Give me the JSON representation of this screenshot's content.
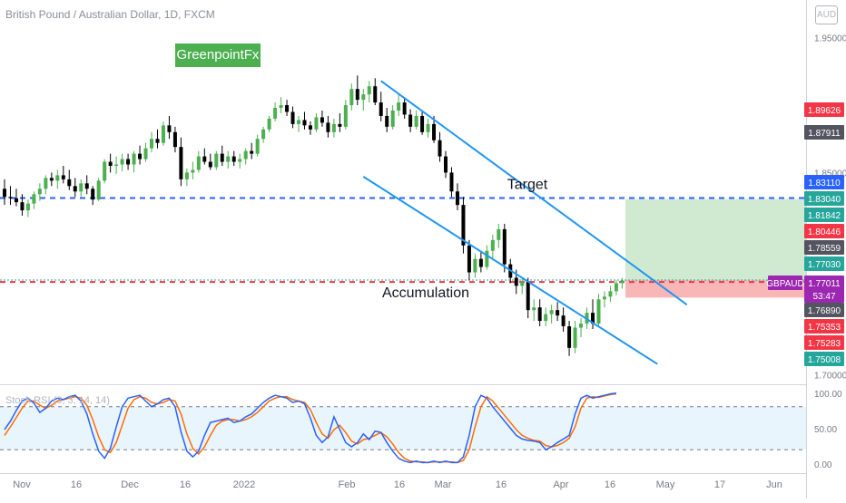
{
  "header": {
    "title": "British Pound / Australian Dollar, 1D, FXCM"
  },
  "branding": {
    "label": "GreenpointFx"
  },
  "currency_badge": "AUD",
  "chart_data": {
    "type": "candlestick",
    "symbol": "GBPAUD",
    "timeframe": "1D",
    "y_axis": {
      "ticks": [
        "1.95000",
        "1.85000",
        "1.70000"
      ],
      "ylim": [
        1.693,
        1.978
      ]
    },
    "x_axis": {
      "ticks": [
        "Nov",
        "16",
        "Dec",
        "16",
        "2022",
        "Feb",
        "16",
        "Mar",
        "16",
        "Apr",
        "16",
        "May",
        "17",
        "Jun"
      ]
    },
    "candles": [
      {
        "o": 1.838,
        "h": 1.845,
        "l": 1.826,
        "c": 1.832
      },
      {
        "o": 1.832,
        "h": 1.84,
        "l": 1.826,
        "c": 1.831
      },
      {
        "o": 1.831,
        "h": 1.838,
        "l": 1.825,
        "c": 1.828
      },
      {
        "o": 1.828,
        "h": 1.834,
        "l": 1.818,
        "c": 1.822
      },
      {
        "o": 1.822,
        "h": 1.83,
        "l": 1.817,
        "c": 1.827
      },
      {
        "o": 1.827,
        "h": 1.836,
        "l": 1.823,
        "c": 1.834
      },
      {
        "o": 1.834,
        "h": 1.842,
        "l": 1.829,
        "c": 1.838
      },
      {
        "o": 1.838,
        "h": 1.848,
        "l": 1.834,
        "c": 1.846
      },
      {
        "o": 1.846,
        "h": 1.85,
        "l": 1.84,
        "c": 1.844
      },
      {
        "o": 1.844,
        "h": 1.852,
        "l": 1.838,
        "c": 1.848
      },
      {
        "o": 1.848,
        "h": 1.855,
        "l": 1.842,
        "c": 1.845
      },
      {
        "o": 1.845,
        "h": 1.852,
        "l": 1.837,
        "c": 1.84
      },
      {
        "o": 1.84,
        "h": 1.846,
        "l": 1.832,
        "c": 1.836
      },
      {
        "o": 1.836,
        "h": 1.845,
        "l": 1.832,
        "c": 1.842
      },
      {
        "o": 1.842,
        "h": 1.848,
        "l": 1.834,
        "c": 1.838
      },
      {
        "o": 1.838,
        "h": 1.84,
        "l": 1.826,
        "c": 1.83
      },
      {
        "o": 1.83,
        "h": 1.846,
        "l": 1.829,
        "c": 1.844
      },
      {
        "o": 1.844,
        "h": 1.86,
        "l": 1.842,
        "c": 1.858
      },
      {
        "o": 1.858,
        "h": 1.864,
        "l": 1.85,
        "c": 1.855
      },
      {
        "o": 1.855,
        "h": 1.862,
        "l": 1.849,
        "c": 1.856
      },
      {
        "o": 1.856,
        "h": 1.864,
        "l": 1.851,
        "c": 1.86
      },
      {
        "o": 1.86,
        "h": 1.864,
        "l": 1.852,
        "c": 1.856
      },
      {
        "o": 1.856,
        "h": 1.866,
        "l": 1.85,
        "c": 1.864
      },
      {
        "o": 1.864,
        "h": 1.87,
        "l": 1.856,
        "c": 1.86
      },
      {
        "o": 1.86,
        "h": 1.872,
        "l": 1.858,
        "c": 1.868
      },
      {
        "o": 1.868,
        "h": 1.88,
        "l": 1.865,
        "c": 1.875
      },
      {
        "o": 1.875,
        "h": 1.882,
        "l": 1.868,
        "c": 1.872
      },
      {
        "o": 1.872,
        "h": 1.888,
        "l": 1.87,
        "c": 1.885
      },
      {
        "o": 1.885,
        "h": 1.892,
        "l": 1.875,
        "c": 1.88
      },
      {
        "o": 1.88,
        "h": 1.884,
        "l": 1.865,
        "c": 1.869
      },
      {
        "o": 1.869,
        "h": 1.876,
        "l": 1.84,
        "c": 1.845
      },
      {
        "o": 1.845,
        "h": 1.853,
        "l": 1.84,
        "c": 1.85
      },
      {
        "o": 1.85,
        "h": 1.858,
        "l": 1.845,
        "c": 1.852
      },
      {
        "o": 1.852,
        "h": 1.866,
        "l": 1.85,
        "c": 1.862
      },
      {
        "o": 1.862,
        "h": 1.868,
        "l": 1.856,
        "c": 1.858
      },
      {
        "o": 1.858,
        "h": 1.864,
        "l": 1.852,
        "c": 1.854
      },
      {
        "o": 1.854,
        "h": 1.866,
        "l": 1.852,
        "c": 1.864
      },
      {
        "o": 1.864,
        "h": 1.87,
        "l": 1.855,
        "c": 1.858
      },
      {
        "o": 1.858,
        "h": 1.866,
        "l": 1.853,
        "c": 1.862
      },
      {
        "o": 1.862,
        "h": 1.866,
        "l": 1.855,
        "c": 1.858
      },
      {
        "o": 1.858,
        "h": 1.864,
        "l": 1.853,
        "c": 1.86
      },
      {
        "o": 1.86,
        "h": 1.868,
        "l": 1.856,
        "c": 1.866
      },
      {
        "o": 1.866,
        "h": 1.872,
        "l": 1.86,
        "c": 1.864
      },
      {
        "o": 1.864,
        "h": 1.878,
        "l": 1.862,
        "c": 1.875
      },
      {
        "o": 1.875,
        "h": 1.884,
        "l": 1.872,
        "c": 1.882
      },
      {
        "o": 1.882,
        "h": 1.892,
        "l": 1.88,
        "c": 1.89
      },
      {
        "o": 1.89,
        "h": 1.902,
        "l": 1.888,
        "c": 1.898
      },
      {
        "o": 1.898,
        "h": 1.906,
        "l": 1.894,
        "c": 1.9
      },
      {
        "o": 1.9,
        "h": 1.904,
        "l": 1.892,
        "c": 1.895
      },
      {
        "o": 1.895,
        "h": 1.899,
        "l": 1.883,
        "c": 1.886
      },
      {
        "o": 1.886,
        "h": 1.892,
        "l": 1.88,
        "c": 1.889
      },
      {
        "o": 1.889,
        "h": 1.895,
        "l": 1.882,
        "c": 1.885
      },
      {
        "o": 1.885,
        "h": 1.888,
        "l": 1.878,
        "c": 1.882
      },
      {
        "o": 1.882,
        "h": 1.894,
        "l": 1.88,
        "c": 1.891
      },
      {
        "o": 1.891,
        "h": 1.896,
        "l": 1.884,
        "c": 1.887
      },
      {
        "o": 1.887,
        "h": 1.892,
        "l": 1.876,
        "c": 1.88
      },
      {
        "o": 1.88,
        "h": 1.89,
        "l": 1.876,
        "c": 1.886
      },
      {
        "o": 1.886,
        "h": 1.894,
        "l": 1.88,
        "c": 1.884
      },
      {
        "o": 1.884,
        "h": 1.904,
        "l": 1.882,
        "c": 1.9
      },
      {
        "o": 1.9,
        "h": 1.916,
        "l": 1.896,
        "c": 1.912
      },
      {
        "o": 1.912,
        "h": 1.922,
        "l": 1.9,
        "c": 1.904
      },
      {
        "o": 1.904,
        "h": 1.912,
        "l": 1.896,
        "c": 1.908
      },
      {
        "o": 1.908,
        "h": 1.918,
        "l": 1.902,
        "c": 1.914
      },
      {
        "o": 1.914,
        "h": 1.92,
        "l": 1.9,
        "c": 1.902
      },
      {
        "o": 1.902,
        "h": 1.91,
        "l": 1.888,
        "c": 1.892
      },
      {
        "o": 1.892,
        "h": 1.898,
        "l": 1.88,
        "c": 1.884
      },
      {
        "o": 1.884,
        "h": 1.9,
        "l": 1.882,
        "c": 1.896
      },
      {
        "o": 1.896,
        "h": 1.908,
        "l": 1.892,
        "c": 1.902
      },
      {
        "o": 1.902,
        "h": 1.906,
        "l": 1.89,
        "c": 1.893
      },
      {
        "o": 1.893,
        "h": 1.897,
        "l": 1.88,
        "c": 1.884
      },
      {
        "o": 1.884,
        "h": 1.896,
        "l": 1.882,
        "c": 1.892
      },
      {
        "o": 1.892,
        "h": 1.896,
        "l": 1.878,
        "c": 1.88
      },
      {
        "o": 1.88,
        "h": 1.89,
        "l": 1.876,
        "c": 1.886
      },
      {
        "o": 1.886,
        "h": 1.892,
        "l": 1.872,
        "c": 1.874
      },
      {
        "o": 1.874,
        "h": 1.88,
        "l": 1.858,
        "c": 1.862
      },
      {
        "o": 1.862,
        "h": 1.866,
        "l": 1.846,
        "c": 1.85
      },
      {
        "o": 1.85,
        "h": 1.854,
        "l": 1.832,
        "c": 1.836
      },
      {
        "o": 1.836,
        "h": 1.842,
        "l": 1.822,
        "c": 1.826
      },
      {
        "o": 1.826,
        "h": 1.832,
        "l": 1.79,
        "c": 1.796
      },
      {
        "o": 1.796,
        "h": 1.8,
        "l": 1.77,
        "c": 1.776
      },
      {
        "o": 1.776,
        "h": 1.79,
        "l": 1.772,
        "c": 1.786
      },
      {
        "o": 1.786,
        "h": 1.792,
        "l": 1.776,
        "c": 1.78
      },
      {
        "o": 1.78,
        "h": 1.796,
        "l": 1.778,
        "c": 1.792
      },
      {
        "o": 1.792,
        "h": 1.804,
        "l": 1.786,
        "c": 1.8
      },
      {
        "o": 1.8,
        "h": 1.812,
        "l": 1.794,
        "c": 1.808
      },
      {
        "o": 1.808,
        "h": 1.812,
        "l": 1.776,
        "c": 1.782
      },
      {
        "o": 1.782,
        "h": 1.786,
        "l": 1.768,
        "c": 1.772
      },
      {
        "o": 1.772,
        "h": 1.778,
        "l": 1.76,
        "c": 1.766
      },
      {
        "o": 1.766,
        "h": 1.772,
        "l": 1.76,
        "c": 1.769
      },
      {
        "o": 1.769,
        "h": 1.772,
        "l": 1.742,
        "c": 1.748
      },
      {
        "o": 1.748,
        "h": 1.756,
        "l": 1.74,
        "c": 1.75
      },
      {
        "o": 1.75,
        "h": 1.756,
        "l": 1.736,
        "c": 1.74
      },
      {
        "o": 1.74,
        "h": 1.75,
        "l": 1.736,
        "c": 1.745
      },
      {
        "o": 1.745,
        "h": 1.752,
        "l": 1.738,
        "c": 1.748
      },
      {
        "o": 1.748,
        "h": 1.754,
        "l": 1.74,
        "c": 1.744
      },
      {
        "o": 1.744,
        "h": 1.75,
        "l": 1.732,
        "c": 1.736
      },
      {
        "o": 1.736,
        "h": 1.74,
        "l": 1.714,
        "c": 1.72
      },
      {
        "o": 1.72,
        "h": 1.74,
        "l": 1.716,
        "c": 1.735
      },
      {
        "o": 1.735,
        "h": 1.742,
        "l": 1.728,
        "c": 1.738
      },
      {
        "o": 1.738,
        "h": 1.75,
        "l": 1.734,
        "c": 1.746
      },
      {
        "o": 1.746,
        "h": 1.756,
        "l": 1.734,
        "c": 1.738
      },
      {
        "o": 1.738,
        "h": 1.76,
        "l": 1.736,
        "c": 1.756
      },
      {
        "o": 1.756,
        "h": 1.762,
        "l": 1.75,
        "c": 1.758
      },
      {
        "o": 1.758,
        "h": 1.766,
        "l": 1.754,
        "c": 1.762
      },
      {
        "o": 1.762,
        "h": 1.77,
        "l": 1.759,
        "c": 1.768
      },
      {
        "o": 1.768,
        "h": 1.772,
        "l": 1.764,
        "c": 1.77
      }
    ],
    "price_labels": [
      {
        "value": "1.89626",
        "color": "#f23645"
      },
      {
        "value": "1.87911",
        "color": "#525560"
      },
      {
        "value": "1.83110",
        "color": "#2962ff"
      },
      {
        "value": "1.83040",
        "color": "#26a69a"
      },
      {
        "value": "1.81842",
        "color": "#26a69a"
      },
      {
        "value": "1.80446",
        "color": "#f23645"
      },
      {
        "value": "1.78559",
        "color": "#525560"
      },
      {
        "value": "1.77030",
        "color": "#26a69a"
      },
      {
        "value": "1.77011",
        "color": "#9c27b0",
        "countdown": "53:47"
      },
      {
        "value": "1.76890",
        "color": "#525560"
      },
      {
        "value": "1.75353",
        "color": "#f23645"
      },
      {
        "value": "1.75283",
        "color": "#f23645"
      },
      {
        "value": "1.75008",
        "color": "#26a69a"
      }
    ],
    "annotations": {
      "target_label": "Target",
      "accumulation_label": "Accumulation",
      "target_level": 1.8311,
      "stop_level": 1.7689,
      "entry_level": 1.7703,
      "position_box": {
        "entry": 1.7703,
        "target": 1.8304,
        "stop": 1.7573
      },
      "channel_upper": {
        "from": [
          64,
          1.918
        ],
        "to": [
          116,
          1.752
        ]
      },
      "channel_lower": {
        "from": [
          61,
          1.847
        ],
        "to": [
          111,
          1.708
        ]
      }
    },
    "stoch_rsi": {
      "label": "Stoch RSI (3, 3, 14, 14)",
      "y_ticks": [
        "100.00",
        "50.00",
        "0.00"
      ],
      "bands": [
        80,
        20
      ],
      "k": [
        48,
        60,
        75,
        88,
        92,
        85,
        72,
        78,
        88,
        92,
        90,
        94,
        96,
        88,
        70,
        42,
        18,
        8,
        22,
        52,
        80,
        92,
        94,
        96,
        88,
        80,
        84,
        90,
        92,
        80,
        45,
        18,
        10,
        18,
        40,
        58,
        60,
        62,
        64,
        58,
        60,
        66,
        70,
        78,
        86,
        92,
        96,
        94,
        92,
        86,
        88,
        84,
        64,
        40,
        30,
        38,
        66,
        48,
        30,
        24,
        30,
        42,
        34,
        46,
        44,
        30,
        18,
        8,
        4,
        2,
        4,
        2,
        2,
        4,
        2,
        4,
        2,
        2,
        10,
        40,
        80,
        96,
        92,
        80,
        70,
        60,
        50,
        40,
        35,
        33,
        32,
        30,
        20,
        24,
        30,
        35,
        40,
        70,
        92,
        96,
        92,
        94,
        96,
        98,
        99
      ],
      "d": [
        40,
        52,
        65,
        78,
        88,
        88,
        82,
        78,
        82,
        88,
        90,
        92,
        94,
        92,
        82,
        62,
        38,
        20,
        16,
        30,
        54,
        78,
        90,
        94,
        92,
        86,
        84,
        86,
        90,
        88,
        70,
        42,
        22,
        14,
        24,
        40,
        54,
        60,
        62,
        62,
        60,
        62,
        66,
        72,
        80,
        88,
        92,
        94,
        94,
        90,
        88,
        86,
        76,
        58,
        42,
        36,
        48,
        54,
        44,
        32,
        28,
        34,
        36,
        40,
        44,
        38,
        28,
        16,
        8,
        4,
        3,
        3,
        2,
        3,
        3,
        3,
        3,
        2,
        5,
        20,
        52,
        80,
        94,
        88,
        78,
        68,
        58,
        48,
        40,
        36,
        33,
        32,
        26,
        24,
        26,
        30,
        36,
        52,
        78,
        92,
        94,
        93,
        95,
        97,
        98
      ]
    }
  }
}
